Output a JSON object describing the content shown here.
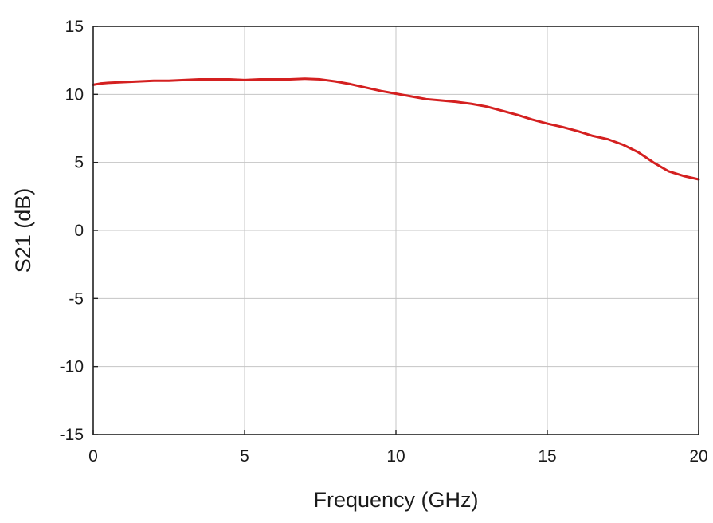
{
  "chart_data": {
    "type": "line",
    "title": "",
    "xlabel": "Frequency (GHz)",
    "ylabel": "S21 (dB)",
    "xlim": [
      0,
      20
    ],
    "ylim": [
      -15,
      15
    ],
    "xticks": [
      0,
      5,
      10,
      15,
      20
    ],
    "yticks": [
      -15,
      -10,
      -5,
      0,
      5,
      10,
      15
    ],
    "xtick_labels": [
      "0",
      "5",
      "10",
      "15",
      "20"
    ],
    "ytick_labels": [
      "-15",
      "-10",
      "-5",
      "0",
      "5",
      "10",
      "15"
    ],
    "grid": true,
    "legend": "none",
    "series": [
      {
        "color": "#d42020",
        "x": [
          0,
          0.25,
          0.5,
          1,
          1.5,
          2,
          2.5,
          3,
          3.5,
          4,
          4.5,
          5,
          5.5,
          6,
          6.5,
          7,
          7.5,
          8,
          8.5,
          9,
          9.5,
          10,
          10.5,
          11,
          11.5,
          12,
          12.5,
          13,
          13.5,
          14,
          14.5,
          15,
          15.5,
          16,
          16.5,
          17,
          17.5,
          18,
          18.5,
          19,
          19.5,
          20
        ],
        "y": [
          10.7,
          10.8,
          10.85,
          10.9,
          10.95,
          11.0,
          11.0,
          11.05,
          11.1,
          11.1,
          11.1,
          11.05,
          11.1,
          11.1,
          11.1,
          11.15,
          11.1,
          10.95,
          10.75,
          10.5,
          10.25,
          10.05,
          9.85,
          9.65,
          9.55,
          9.45,
          9.3,
          9.1,
          8.8,
          8.5,
          8.15,
          7.85,
          7.6,
          7.3,
          6.95,
          6.7,
          6.3,
          5.75,
          5.0,
          4.35,
          4.0,
          3.75
        ]
      }
    ]
  }
}
